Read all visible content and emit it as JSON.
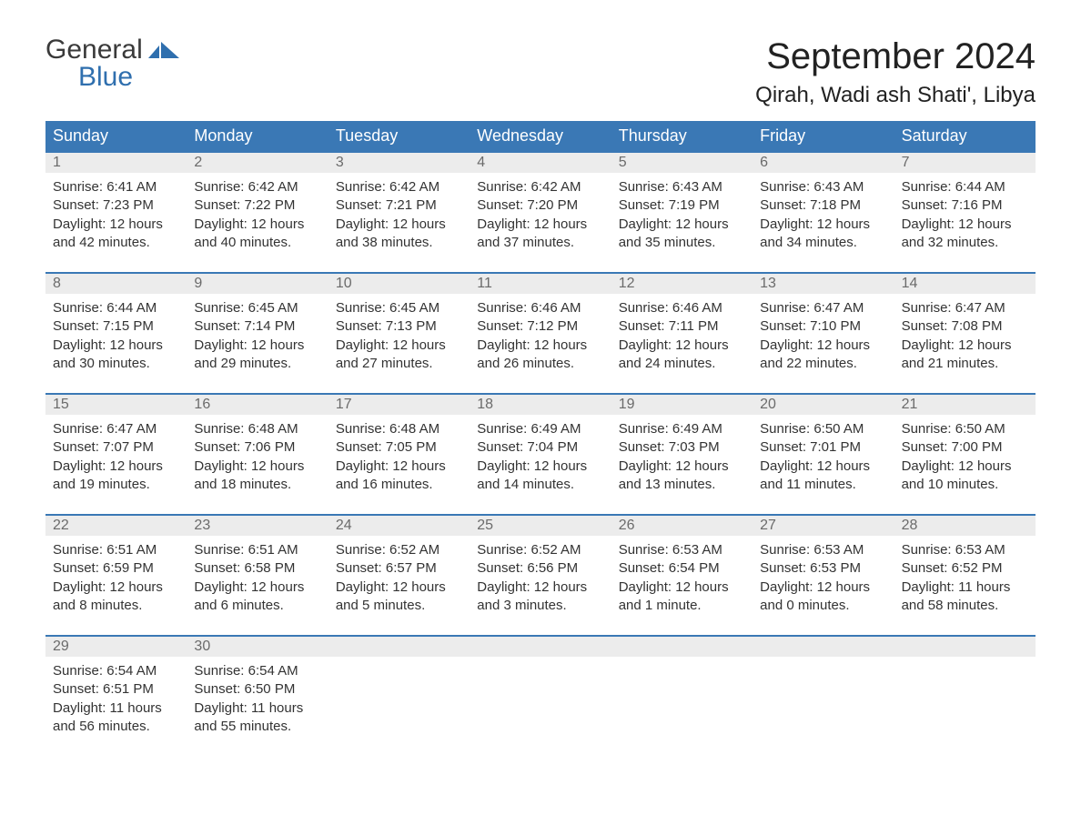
{
  "brand": {
    "word1": "General",
    "word2": "Blue",
    "flag_color": "#2f6fae"
  },
  "title": "September 2024",
  "location": "Qirah, Wadi ash Shati', Libya",
  "colors": {
    "header_bg": "#3a78b5",
    "header_text": "#ffffff",
    "daynum_bg": "#ececec",
    "daynum_border": "#3a78b5",
    "daynum_text": "#6b6b6b",
    "body_text": "#333333"
  },
  "dow": [
    "Sunday",
    "Monday",
    "Tuesday",
    "Wednesday",
    "Thursday",
    "Friday",
    "Saturday"
  ],
  "weeks": [
    [
      {
        "n": "1",
        "sunrise": "Sunrise: 6:41 AM",
        "sunset": "Sunset: 7:23 PM",
        "day1": "Daylight: 12 hours",
        "day2": "and 42 minutes."
      },
      {
        "n": "2",
        "sunrise": "Sunrise: 6:42 AM",
        "sunset": "Sunset: 7:22 PM",
        "day1": "Daylight: 12 hours",
        "day2": "and 40 minutes."
      },
      {
        "n": "3",
        "sunrise": "Sunrise: 6:42 AM",
        "sunset": "Sunset: 7:21 PM",
        "day1": "Daylight: 12 hours",
        "day2": "and 38 minutes."
      },
      {
        "n": "4",
        "sunrise": "Sunrise: 6:42 AM",
        "sunset": "Sunset: 7:20 PM",
        "day1": "Daylight: 12 hours",
        "day2": "and 37 minutes."
      },
      {
        "n": "5",
        "sunrise": "Sunrise: 6:43 AM",
        "sunset": "Sunset: 7:19 PM",
        "day1": "Daylight: 12 hours",
        "day2": "and 35 minutes."
      },
      {
        "n": "6",
        "sunrise": "Sunrise: 6:43 AM",
        "sunset": "Sunset: 7:18 PM",
        "day1": "Daylight: 12 hours",
        "day2": "and 34 minutes."
      },
      {
        "n": "7",
        "sunrise": "Sunrise: 6:44 AM",
        "sunset": "Sunset: 7:16 PM",
        "day1": "Daylight: 12 hours",
        "day2": "and 32 minutes."
      }
    ],
    [
      {
        "n": "8",
        "sunrise": "Sunrise: 6:44 AM",
        "sunset": "Sunset: 7:15 PM",
        "day1": "Daylight: 12 hours",
        "day2": "and 30 minutes."
      },
      {
        "n": "9",
        "sunrise": "Sunrise: 6:45 AM",
        "sunset": "Sunset: 7:14 PM",
        "day1": "Daylight: 12 hours",
        "day2": "and 29 minutes."
      },
      {
        "n": "10",
        "sunrise": "Sunrise: 6:45 AM",
        "sunset": "Sunset: 7:13 PM",
        "day1": "Daylight: 12 hours",
        "day2": "and 27 minutes."
      },
      {
        "n": "11",
        "sunrise": "Sunrise: 6:46 AM",
        "sunset": "Sunset: 7:12 PM",
        "day1": "Daylight: 12 hours",
        "day2": "and 26 minutes."
      },
      {
        "n": "12",
        "sunrise": "Sunrise: 6:46 AM",
        "sunset": "Sunset: 7:11 PM",
        "day1": "Daylight: 12 hours",
        "day2": "and 24 minutes."
      },
      {
        "n": "13",
        "sunrise": "Sunrise: 6:47 AM",
        "sunset": "Sunset: 7:10 PM",
        "day1": "Daylight: 12 hours",
        "day2": "and 22 minutes."
      },
      {
        "n": "14",
        "sunrise": "Sunrise: 6:47 AM",
        "sunset": "Sunset: 7:08 PM",
        "day1": "Daylight: 12 hours",
        "day2": "and 21 minutes."
      }
    ],
    [
      {
        "n": "15",
        "sunrise": "Sunrise: 6:47 AM",
        "sunset": "Sunset: 7:07 PM",
        "day1": "Daylight: 12 hours",
        "day2": "and 19 minutes."
      },
      {
        "n": "16",
        "sunrise": "Sunrise: 6:48 AM",
        "sunset": "Sunset: 7:06 PM",
        "day1": "Daylight: 12 hours",
        "day2": "and 18 minutes."
      },
      {
        "n": "17",
        "sunrise": "Sunrise: 6:48 AM",
        "sunset": "Sunset: 7:05 PM",
        "day1": "Daylight: 12 hours",
        "day2": "and 16 minutes."
      },
      {
        "n": "18",
        "sunrise": "Sunrise: 6:49 AM",
        "sunset": "Sunset: 7:04 PM",
        "day1": "Daylight: 12 hours",
        "day2": "and 14 minutes."
      },
      {
        "n": "19",
        "sunrise": "Sunrise: 6:49 AM",
        "sunset": "Sunset: 7:03 PM",
        "day1": "Daylight: 12 hours",
        "day2": "and 13 minutes."
      },
      {
        "n": "20",
        "sunrise": "Sunrise: 6:50 AM",
        "sunset": "Sunset: 7:01 PM",
        "day1": "Daylight: 12 hours",
        "day2": "and 11 minutes."
      },
      {
        "n": "21",
        "sunrise": "Sunrise: 6:50 AM",
        "sunset": "Sunset: 7:00 PM",
        "day1": "Daylight: 12 hours",
        "day2": "and 10 minutes."
      }
    ],
    [
      {
        "n": "22",
        "sunrise": "Sunrise: 6:51 AM",
        "sunset": "Sunset: 6:59 PM",
        "day1": "Daylight: 12 hours",
        "day2": "and 8 minutes."
      },
      {
        "n": "23",
        "sunrise": "Sunrise: 6:51 AM",
        "sunset": "Sunset: 6:58 PM",
        "day1": "Daylight: 12 hours",
        "day2": "and 6 minutes."
      },
      {
        "n": "24",
        "sunrise": "Sunrise: 6:52 AM",
        "sunset": "Sunset: 6:57 PM",
        "day1": "Daylight: 12 hours",
        "day2": "and 5 minutes."
      },
      {
        "n": "25",
        "sunrise": "Sunrise: 6:52 AM",
        "sunset": "Sunset: 6:56 PM",
        "day1": "Daylight: 12 hours",
        "day2": "and 3 minutes."
      },
      {
        "n": "26",
        "sunrise": "Sunrise: 6:53 AM",
        "sunset": "Sunset: 6:54 PM",
        "day1": "Daylight: 12 hours",
        "day2": "and 1 minute."
      },
      {
        "n": "27",
        "sunrise": "Sunrise: 6:53 AM",
        "sunset": "Sunset: 6:53 PM",
        "day1": "Daylight: 12 hours",
        "day2": "and 0 minutes."
      },
      {
        "n": "28",
        "sunrise": "Sunrise: 6:53 AM",
        "sunset": "Sunset: 6:52 PM",
        "day1": "Daylight: 11 hours",
        "day2": "and 58 minutes."
      }
    ],
    [
      {
        "n": "29",
        "sunrise": "Sunrise: 6:54 AM",
        "sunset": "Sunset: 6:51 PM",
        "day1": "Daylight: 11 hours",
        "day2": "and 56 minutes."
      },
      {
        "n": "30",
        "sunrise": "Sunrise: 6:54 AM",
        "sunset": "Sunset: 6:50 PM",
        "day1": "Daylight: 11 hours",
        "day2": "and 55 minutes."
      },
      {
        "n": "",
        "sunrise": "",
        "sunset": "",
        "day1": "",
        "day2": ""
      },
      {
        "n": "",
        "sunrise": "",
        "sunset": "",
        "day1": "",
        "day2": ""
      },
      {
        "n": "",
        "sunrise": "",
        "sunset": "",
        "day1": "",
        "day2": ""
      },
      {
        "n": "",
        "sunrise": "",
        "sunset": "",
        "day1": "",
        "day2": ""
      },
      {
        "n": "",
        "sunrise": "",
        "sunset": "",
        "day1": "",
        "day2": ""
      }
    ]
  ]
}
